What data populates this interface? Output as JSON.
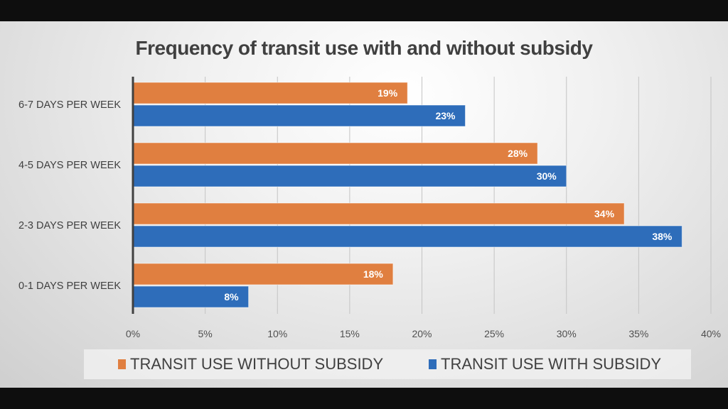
{
  "chart_data": {
    "type": "bar",
    "orientation": "horizontal",
    "title": "Frequency of transit use with and without subsidy",
    "categories": [
      "6-7 DAYS PER WEEK",
      "4-5 DAYS PER WEEK",
      "2-3 DAYS PER WEEK",
      "0-1 DAYS PER WEEK"
    ],
    "series": [
      {
        "name": "TRANSIT USE WITHOUT SUBSIDY",
        "color": "#E07F40",
        "values": [
          19,
          28,
          34,
          18
        ],
        "labels": [
          "19%",
          "28%",
          "34%",
          "18%"
        ]
      },
      {
        "name": "TRANSIT USE WITH SUBSIDY",
        "color": "#2E6DBA",
        "values": [
          23,
          30,
          38,
          8
        ],
        "labels": [
          "23%",
          "30%",
          "38%",
          "8%"
        ]
      }
    ],
    "xlim": [
      0,
      40
    ],
    "xticks": [
      "0%",
      "5%",
      "10%",
      "15%",
      "20%",
      "25%",
      "30%",
      "35%",
      "40%"
    ],
    "xlabel": "",
    "ylabel": "",
    "grid": "vertical",
    "legend_position": "bottom"
  }
}
